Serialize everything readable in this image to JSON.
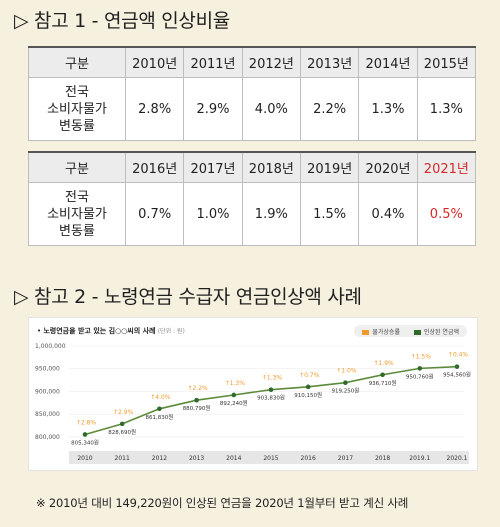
{
  "section1": {
    "title": "▷ 참고 1 - 연금액 인상비율"
  },
  "table1": {
    "header_label": "구분",
    "years": [
      "2010년",
      "2011년",
      "2012년",
      "2013년",
      "2014년",
      "2015년"
    ],
    "row_label_lines": [
      "전국",
      "소비자물가",
      "변동률"
    ],
    "values": [
      "2.8%",
      "2.9%",
      "4.0%",
      "2.2%",
      "1.3%",
      "1.3%"
    ]
  },
  "table2": {
    "header_label": "구분",
    "years": [
      "2016년",
      "2017년",
      "2018년",
      "2019년",
      "2020년",
      "2021년"
    ],
    "row_label_lines": [
      "전국",
      "소비자물가",
      "변동률"
    ],
    "values": [
      "0.7%",
      "1.0%",
      "1.9%",
      "1.5%",
      "0.4%",
      "0.5%"
    ]
  },
  "section2": {
    "title": "▷ 참고 2 - 노령연금 수급자 연금인상액 사례"
  },
  "chart_data": {
    "type": "line",
    "title": "노령연금을 받고 있는 김○○씨의 사례",
    "unit": "(단위 : 원)",
    "legend": [
      {
        "name": "물가상승률",
        "color": "#f29a2e"
      },
      {
        "name": "인상된 연금액",
        "color": "#2f6b2a"
      }
    ],
    "x": [
      "2010",
      "2011",
      "2012",
      "2013",
      "2014",
      "2015",
      "2016",
      "2017",
      "2018",
      "2019.1",
      "2020.1"
    ],
    "series": [
      {
        "name": "인상된 연금액",
        "values": [
          805340,
          828690,
          861830,
          880790,
          892240,
          903830,
          910150,
          919250,
          936710,
          950760,
          954560
        ],
        "labels": [
          "805,340원",
          "828,690원",
          "861,830원",
          "880,790원",
          "892,240원",
          "903,830원",
          "910,150원",
          "919,250원",
          "936,710원",
          "950,760원",
          "954,560원"
        ]
      },
      {
        "name": "물가상승률",
        "labels": [
          "2.8%",
          "2.9%",
          "4.0%",
          "2.2%",
          "1.3%",
          "1.3%",
          "0.7%",
          "1.0%",
          "1.9%",
          "1.5%",
          "0.4%"
        ]
      }
    ],
    "y_ticks": [
      "1,000,000",
      "950,000",
      "900,000",
      "850,000",
      "800,000"
    ],
    "ylim": [
      780000,
      1000000
    ]
  },
  "colors": {
    "accent_red": "#d42a2a",
    "line": "#5c8a3a",
    "marker": "#2f6b2a",
    "rate": "#f29a2e"
  },
  "footnote": "※ 2010년 대비 149,220원이 인상된 연금을 2020년 1월부터 받고 계신 사례"
}
